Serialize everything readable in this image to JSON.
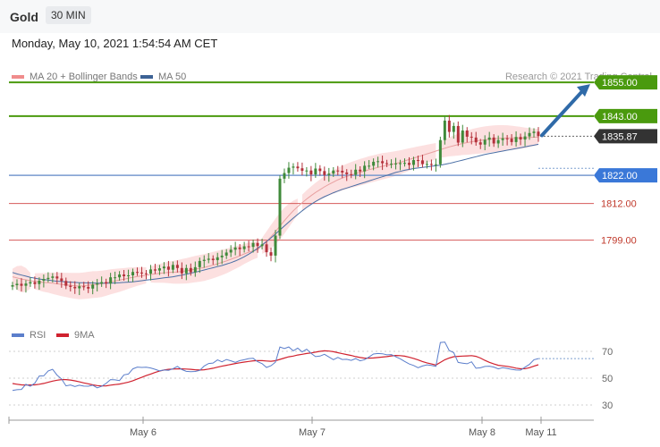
{
  "header": {
    "symbol": "Gold",
    "timeframe": "30 MIN",
    "datetime": "Monday, May 10, 2021 1:54:54 AM CET"
  },
  "legend": {
    "ma20": "MA 20 + Bollinger Bands",
    "ma50": "MA 50",
    "credit": "Research © 2021 Trading Central"
  },
  "rsi_legend": {
    "rsi": "RSI",
    "ma9": "9MA"
  },
  "colors": {
    "resistance": "#4a9a0e",
    "support": "#3a78d8",
    "support_line": "#7899cf",
    "pivot_red": "#d65a5a",
    "candle_up": "#3f8a3a",
    "candle_down": "#b4313b",
    "bollinger": "#fbd6d6",
    "ma20": "#e8a0a0",
    "ma50": "#4a6fa5",
    "arrow": "#2f6aa8",
    "current_price_bg": "#333333",
    "rsi": "#5b7ecb",
    "rsi_ma": "#d0222f"
  },
  "chart_data": [
    {
      "type": "candlestick",
      "title": "Gold",
      "x_labels": [
        "May 6",
        "May 7",
        "May 8",
        "May 11"
      ],
      "ylim": [
        1770,
        1862
      ],
      "levels": [
        {
          "value": 1855.0,
          "label": "1855.00",
          "kind": "resistance"
        },
        {
          "value": 1843.0,
          "label": "1843.00",
          "kind": "resistance"
        },
        {
          "value": 1835.87,
          "label": "1835.87",
          "kind": "current"
        },
        {
          "value": 1822.0,
          "label": "1822.00",
          "kind": "support"
        },
        {
          "value": 1812.0,
          "label": "1812.00",
          "kind": "pivot"
        },
        {
          "value": 1799.0,
          "label": "1799.00",
          "kind": "pivot"
        }
      ],
      "close": [
        1783.0,
        1783.5,
        1782.8,
        1783.6,
        1784.1,
        1783.4,
        1784.6,
        1785.2,
        1785.6,
        1786.1,
        1785.4,
        1784.5,
        1782.8,
        1782.4,
        1781.9,
        1782.6,
        1782.4,
        1781.8,
        1783.2,
        1783.6,
        1784.1,
        1783.6,
        1785.8,
        1785.8,
        1786.8,
        1786.2,
        1786.5,
        1787.7,
        1787.5,
        1787.2,
        1787.1,
        1788.6,
        1788.2,
        1789.0,
        1789.6,
        1788.5,
        1790.2,
        1789.1,
        1787.2,
        1789.1,
        1787.6,
        1789.4,
        1791.6,
        1792.0,
        1792.4,
        1791.9,
        1792.9,
        1793.5,
        1794.6,
        1795.6,
        1796.4,
        1795.8,
        1796.8,
        1796.6,
        1798.0,
        1796.9,
        1797.5,
        1794.7,
        1793.5,
        1800.6,
        1820.8,
        1822.8,
        1824.7,
        1825.1,
        1824.5,
        1823.6,
        1823.7,
        1822.3,
        1824.4,
        1823.5,
        1822.1,
        1822.6,
        1823.7,
        1823.6,
        1823.0,
        1822.4,
        1822.2,
        1824.0,
        1823.4,
        1825.4,
        1825.4,
        1826.8,
        1827.0,
        1826.3,
        1826.1,
        1826.1,
        1826.2,
        1826.3,
        1826.4,
        1825.7,
        1827.4,
        1827.3,
        1826.0,
        1826.0,
        1825.7,
        1825.9,
        1834.5,
        1841.4,
        1837.4,
        1839.5,
        1833.6,
        1837.9,
        1835.7,
        1835.4,
        1833.7,
        1832.9,
        1834.6,
        1835.4,
        1833.3,
        1834.5,
        1835.1,
        1835.0,
        1833.8,
        1835.6,
        1834.7,
        1835.8,
        1837.0,
        1837.5,
        1835.9
      ],
      "ma20": [
        1786.0,
        1785.6,
        1785.2,
        1784.9,
        1784.6,
        1784.4,
        1784.2,
        1784.0,
        1783.9,
        1783.7,
        1783.5,
        1783.3,
        1783.1,
        1782.9,
        1782.8,
        1782.7,
        1782.8,
        1783.0,
        1783.2,
        1783.3,
        1783.5,
        1783.8,
        1784.2,
        1784.5,
        1784.8,
        1785.1,
        1785.5,
        1785.8,
        1786.1,
        1786.3,
        1786.5,
        1786.8,
        1787.0,
        1787.2,
        1787.4,
        1787.5,
        1787.6,
        1787.7,
        1787.9,
        1788.1,
        1788.4,
        1788.7,
        1789.0,
        1789.3,
        1789.7,
        1790.1,
        1790.6,
        1791.1,
        1791.6,
        1792.2,
        1792.8,
        1793.4,
        1794.1,
        1794.7,
        1795.2,
        1795.6,
        1797.0,
        1798.5,
        1800.2,
        1802.0,
        1804.0,
        1805.9,
        1807.7,
        1809.4,
        1810.9,
        1812.3,
        1813.6,
        1814.8,
        1815.9,
        1816.9,
        1817.9,
        1818.8,
        1819.6,
        1820.4,
        1821.0,
        1821.6,
        1822.1,
        1822.6,
        1823.1,
        1823.5,
        1824.0,
        1824.4,
        1824.8,
        1825.2,
        1825.5,
        1825.8,
        1826.2,
        1826.6,
        1827.1,
        1827.6,
        1828.1,
        1828.6,
        1829.1,
        1829.6,
        1830.1,
        1830.6,
        1831.1,
        1831.6,
        1832.1,
        1832.5,
        1832.9,
        1833.3,
        1833.6,
        1833.9,
        1834.2,
        1834.4,
        1834.6,
        1834.8,
        1835.0,
        1835.1,
        1835.2,
        1835.3,
        1835.3,
        1835.3,
        1835.3,
        1835.3,
        1835.4,
        1835.5,
        1835.6
      ],
      "ma50": [
        1787.5,
        1787.0,
        1786.6,
        1786.2,
        1785.8,
        1785.5,
        1785.2,
        1785.0,
        1784.8,
        1784.6,
        1784.4,
        1784.3,
        1784.2,
        1784.1,
        1784.0,
        1783.9,
        1783.9,
        1783.8,
        1783.8,
        1783.7,
        1783.7,
        1783.7,
        1783.7,
        1783.8,
        1783.9,
        1784.0,
        1784.1,
        1784.2,
        1784.4,
        1784.6,
        1784.8,
        1785.0,
        1785.2,
        1785.4,
        1785.6,
        1785.8,
        1786.0,
        1786.3,
        1786.6,
        1786.9,
        1787.3,
        1787.6,
        1788.0,
        1788.4,
        1788.8,
        1789.2,
        1789.6,
        1790.0,
        1790.5,
        1791.0,
        1791.6,
        1792.3,
        1793.1,
        1794.0,
        1795.0,
        1796.1,
        1797.3,
        1798.5,
        1799.8,
        1801.2,
        1802.6,
        1804.0,
        1805.4,
        1806.8,
        1808.1,
        1809.4,
        1810.6,
        1811.7,
        1812.7,
        1813.6,
        1814.4,
        1815.1,
        1815.8,
        1816.4,
        1817.0,
        1817.5,
        1818.0,
        1818.5,
        1819.0,
        1819.5,
        1820.0,
        1820.5,
        1821.0,
        1821.5,
        1822.0,
        1822.5,
        1823.0,
        1823.4,
        1823.8,
        1824.1,
        1824.4,
        1824.6,
        1824.8,
        1825.0,
        1825.2,
        1825.4,
        1825.6,
        1825.9,
        1826.2,
        1826.6,
        1827.0,
        1827.4,
        1827.8,
        1828.2,
        1828.6,
        1829.0,
        1829.4,
        1829.7,
        1830.0,
        1830.3,
        1830.6,
        1830.9,
        1831.2,
        1831.5,
        1831.8,
        1832.1,
        1832.4,
        1832.7,
        1833.0
      ],
      "projection": {
        "from": 1835.87,
        "to": 1855.0
      }
    },
    {
      "type": "line",
      "title": "RSI",
      "ylim": [
        20,
        80
      ],
      "yticks": [
        30,
        50,
        70
      ],
      "series": [
        {
          "name": "RSI",
          "values": [
            40.8,
            41.4,
            41.6,
            45.4,
            44.0,
            46.3,
            51.6,
            51.7,
            55.4,
            56.6,
            52.3,
            49.4,
            44.3,
            44.9,
            43.7,
            44.7,
            44.1,
            44.0,
            44.7,
            42.8,
            43.9,
            46.1,
            48.9,
            48.7,
            48.2,
            52.5,
            53.1,
            56.9,
            58.3,
            58.0,
            58.2,
            57.6,
            56.6,
            55.5,
            56.1,
            55.8,
            57.0,
            58.8,
            56.4,
            55.1,
            54.8,
            55.0,
            55.8,
            59.1,
            60.9,
            61.3,
            63.6,
            62.2,
            63.9,
            62.9,
            61.8,
            63.1,
            63.7,
            64.6,
            64.8,
            62.3,
            60.8,
            58.0,
            59.3,
            61.9,
            73.2,
            72.1,
            73.3,
            70.4,
            72.4,
            69.6,
            71.6,
            68.5,
            66.1,
            66.5,
            67.8,
            65.8,
            63.8,
            65.5,
            63.9,
            64.1,
            63.3,
            64.6,
            62.9,
            63.8,
            65.8,
            68.0,
            68.4,
            68.2,
            67.4,
            67.6,
            65.9,
            64.5,
            62.5,
            60.6,
            59.5,
            57.8,
            59.1,
            59.9,
            59.5,
            58.8,
            76.6,
            76.9,
            70.6,
            69.1,
            61.7,
            61.2,
            60.7,
            62.2,
            57.4,
            57.7,
            58.7,
            58.9,
            58.3,
            56.9,
            57.8,
            57.3,
            56.6,
            56.1,
            56.0,
            58.2,
            60.3,
            63.7,
            64.6
          ]
        },
        {
          "name": "9MA",
          "values": [
            46.0,
            45.5,
            45.0,
            44.9,
            44.9,
            45.0,
            45.5,
            46.1,
            46.9,
            47.8,
            48.5,
            48.9,
            48.9,
            48.6,
            48.0,
            47.3,
            46.5,
            45.8,
            45.0,
            44.5,
            44.2,
            44.3,
            44.8,
            45.2,
            45.6,
            46.3,
            47.1,
            48.1,
            49.4,
            50.6,
            51.9,
            53.1,
            54.3,
            55.3,
            56.1,
            56.6,
            56.8,
            56.9,
            56.9,
            56.8,
            56.6,
            56.3,
            56.1,
            56.3,
            56.8,
            57.4,
            58.2,
            58.9,
            59.6,
            60.3,
            60.9,
            61.5,
            62.0,
            62.5,
            62.9,
            63.1,
            63.1,
            62.8,
            62.6,
            63.0,
            64.0,
            65.0,
            65.9,
            66.5,
            67.3,
            67.8,
            68.4,
            68.8,
            69.4,
            70.0,
            70.4,
            70.2,
            69.7,
            69.0,
            68.3,
            67.6,
            66.9,
            66.1,
            65.4,
            64.9,
            64.9,
            65.1,
            65.4,
            65.7,
            66.1,
            66.6,
            66.9,
            66.8,
            66.4,
            65.6,
            64.7,
            63.6,
            62.4,
            61.4,
            60.6,
            59.8,
            61.7,
            63.7,
            65.0,
            66.0,
            66.3,
            66.5,
            66.6,
            66.8,
            66.3,
            65.0,
            63.3,
            61.8,
            60.6,
            59.6,
            59.2,
            58.8,
            58.2,
            57.5,
            57.0,
            57.1,
            57.8,
            58.9,
            60.0
          ]
        }
      ]
    }
  ]
}
